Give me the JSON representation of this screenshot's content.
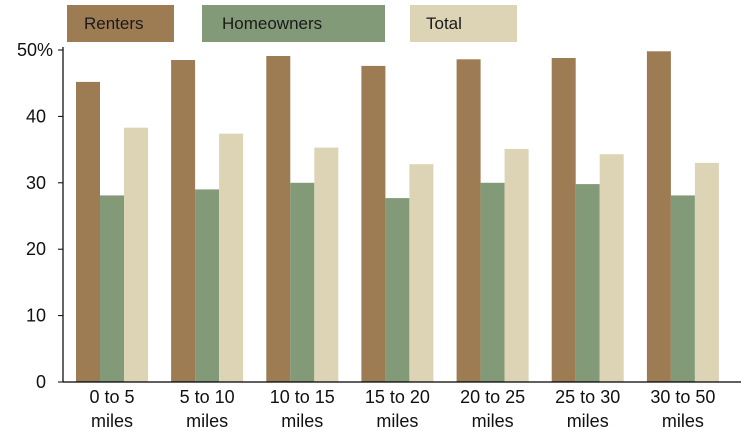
{
  "chart_data": {
    "type": "bar",
    "categories": [
      [
        "0 to 5",
        "miles"
      ],
      [
        "5 to 10",
        "miles"
      ],
      [
        "10 to 15",
        "miles"
      ],
      [
        "15 to 20",
        "miles"
      ],
      [
        "20 to 25",
        "miles"
      ],
      [
        "25 to 30",
        "miles"
      ],
      [
        "30 to 50",
        "miles"
      ]
    ],
    "series": [
      {
        "name": "Renters",
        "color": "#9e7c53",
        "values": [
          45.2,
          48.5,
          49.1,
          47.6,
          48.6,
          48.8,
          49.8
        ]
      },
      {
        "name": "Homeowners",
        "color": "#829a77",
        "values": [
          28.1,
          29.0,
          30.0,
          27.7,
          30.0,
          29.8,
          28.1
        ]
      },
      {
        "name": "Total",
        "color": "#ddd3b5",
        "values": [
          38.3,
          37.4,
          35.3,
          32.8,
          35.1,
          34.3,
          33.0
        ]
      }
    ],
    "yticks": [
      "0",
      "10",
      "20",
      "30",
      "40",
      "50%"
    ],
    "ylim": [
      0,
      50
    ],
    "grid": false,
    "legend": "top"
  }
}
